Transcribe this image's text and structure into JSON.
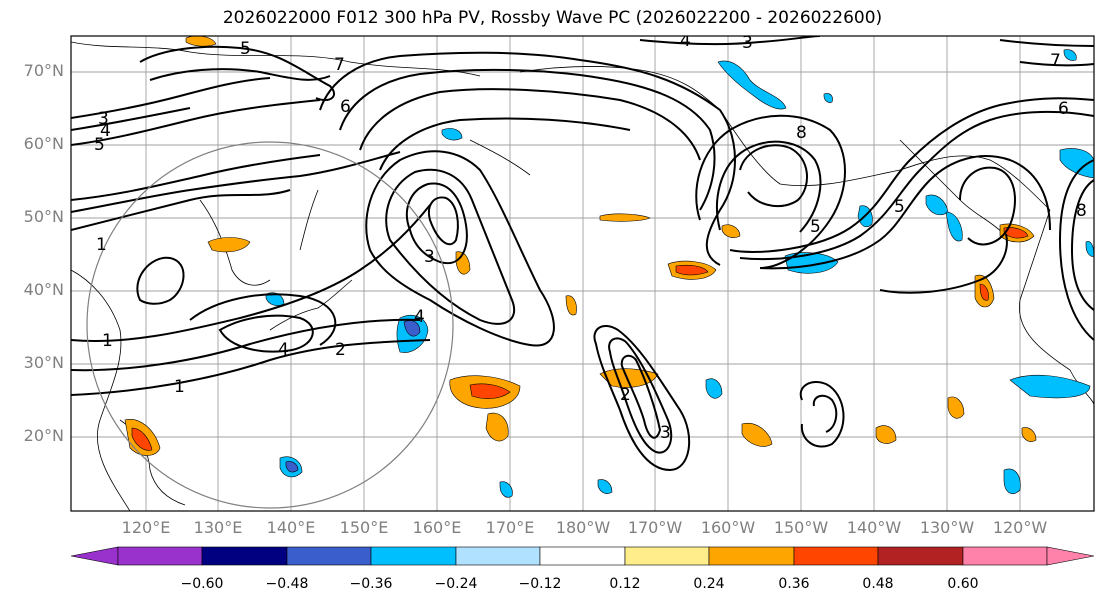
{
  "title": "2026022000 F012 300 hPa PV, Rossby Wave PC (2026022200 - 2026022600)",
  "lat_labels": [
    "70°N",
    "60°N",
    "50°N",
    "40°N",
    "30°N",
    "20°N"
  ],
  "lon_labels": [
    "120°E",
    "130°E",
    "140°E",
    "150°E",
    "160°E",
    "170°E",
    "180°W",
    "170°W",
    "160°W",
    "150°W",
    "140°W",
    "130°W",
    "120°W"
  ],
  "colorbar": {
    "ticks": [
      "−0.60",
      "−0.48",
      "−0.36",
      "−0.24",
      "−0.12",
      "0.12",
      "0.24",
      "0.36",
      "0.48",
      "0.60"
    ],
    "colors": [
      "#9932cc",
      "#000080",
      "#3a5fcd",
      "#00bfff",
      "#b0e2ff",
      "#ffffff",
      "#ffec8b",
      "#ffa500",
      "#ff4500",
      "#b22222",
      "#ff82ab"
    ]
  },
  "contour_labels": [
    "1",
    "2",
    "3",
    "4",
    "5",
    "6",
    "7",
    "8"
  ],
  "colors": {
    "grid": "#a0a0a0",
    "contour": "#000000",
    "axis_label": "#808080"
  }
}
